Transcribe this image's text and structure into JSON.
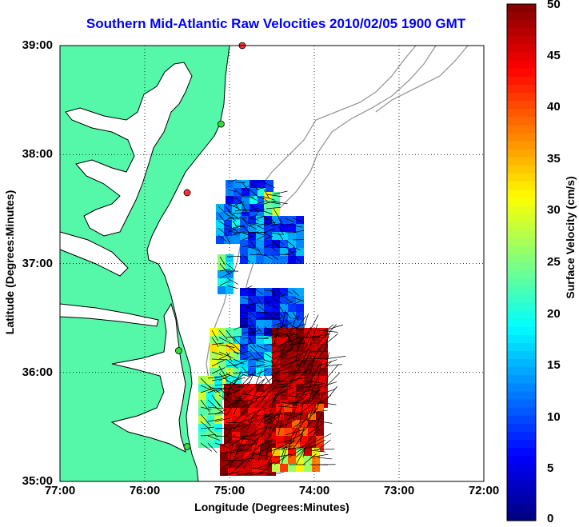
{
  "map": {
    "title": "Southern Mid-Atlantic Raw Velocities 2010/02/05 1900 GMT",
    "xlabel": "Longitude (Degrees:Minutes)",
    "ylabel": "Latitude (Degrees:Minutes)",
    "lon_range": [
      -77,
      -72
    ],
    "lat_range": [
      35,
      39
    ],
    "x_ticks": [
      "77:00",
      "76:00",
      "75:00",
      "74:00",
      "73:00",
      "72:00"
    ],
    "y_ticks": [
      "39:00",
      "38:00",
      "37:00",
      "36:00",
      "35:00"
    ],
    "grid": "dotted",
    "land_color": "#55f7a9",
    "ocean_color": "#ffffff",
    "colorbar": {
      "label": "Surface Velocity (cm/s)",
      "range": [
        0,
        50
      ],
      "ticks": [
        "50",
        "45",
        "40",
        "35",
        "30",
        "25",
        "20",
        "15",
        "10",
        "5",
        "0"
      ],
      "colormap": "jet"
    },
    "stations": [
      {
        "color": "#ff3030",
        "lon": -74.85,
        "lat": 39.0
      },
      {
        "color": "#33dd33",
        "lon": -75.1,
        "lat": 38.28
      },
      {
        "color": "#ff3030",
        "lon": -75.5,
        "lat": 37.65
      },
      {
        "color": "#33dd33",
        "lon": -75.6,
        "lat": 36.2
      },
      {
        "color": "#33dd33",
        "lon": -75.5,
        "lat": 35.32
      }
    ]
  }
}
